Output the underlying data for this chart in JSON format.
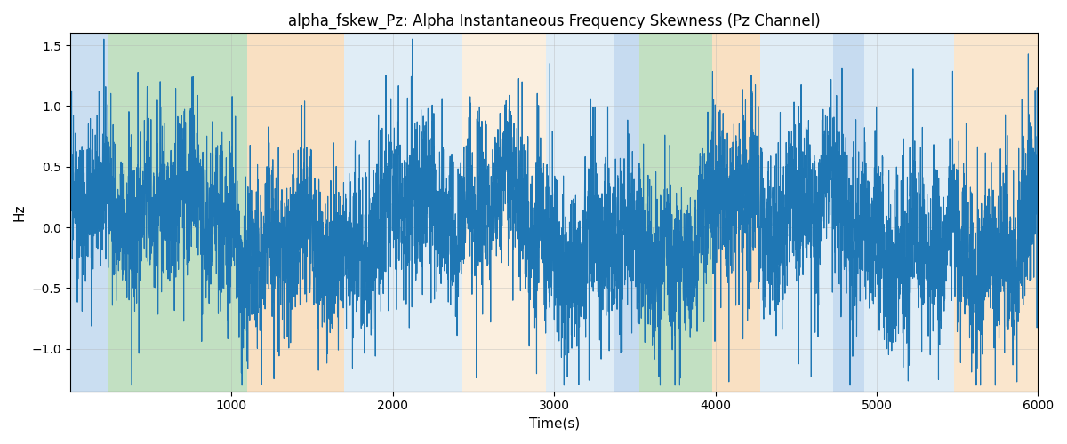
{
  "title": "alpha_fskew_Pz: Alpha Instantaneous Frequency Skewness (Pz Channel)",
  "xlabel": "Time(s)",
  "ylabel": "Hz",
  "xlim": [
    0,
    6000
  ],
  "ylim": [
    -1.35,
    1.6
  ],
  "yticks": [
    -1.0,
    -0.5,
    0.0,
    0.5,
    1.0,
    1.5
  ],
  "xticks": [
    1000,
    2000,
    3000,
    4000,
    5000,
    6000
  ],
  "line_color": "#1f77b4",
  "line_width": 0.8,
  "bg_regions": [
    {
      "xstart": 0,
      "xend": 230,
      "color": "#a8c8e8",
      "alpha": 0.6
    },
    {
      "xstart": 230,
      "xend": 1100,
      "color": "#90c890",
      "alpha": 0.55
    },
    {
      "xstart": 1100,
      "xend": 1700,
      "color": "#f5c890",
      "alpha": 0.55
    },
    {
      "xstart": 1700,
      "xend": 2430,
      "color": "#c8dff0",
      "alpha": 0.55
    },
    {
      "xstart": 2430,
      "xend": 2950,
      "color": "#f5d8b0",
      "alpha": 0.4
    },
    {
      "xstart": 2950,
      "xend": 3370,
      "color": "#c8dff0",
      "alpha": 0.55
    },
    {
      "xstart": 3370,
      "xend": 3530,
      "color": "#a8c8e8",
      "alpha": 0.65
    },
    {
      "xstart": 3530,
      "xend": 3980,
      "color": "#90c890",
      "alpha": 0.55
    },
    {
      "xstart": 3980,
      "xend": 4280,
      "color": "#f5c890",
      "alpha": 0.55
    },
    {
      "xstart": 4280,
      "xend": 4730,
      "color": "#c8dff0",
      "alpha": 0.55
    },
    {
      "xstart": 4730,
      "xend": 4920,
      "color": "#a8c8e8",
      "alpha": 0.65
    },
    {
      "xstart": 4920,
      "xend": 5480,
      "color": "#c8dff0",
      "alpha": 0.55
    },
    {
      "xstart": 5480,
      "xend": 6000,
      "color": "#f5c890",
      "alpha": 0.45
    }
  ],
  "seed": 42,
  "n_points": 6000,
  "figsize": [
    12,
    5
  ],
  "dpi": 100,
  "grid_color": "#b0b0b0",
  "grid_alpha": 0.5,
  "grid_linewidth": 0.5,
  "title_fontsize": 12,
  "label_fontsize": 11
}
